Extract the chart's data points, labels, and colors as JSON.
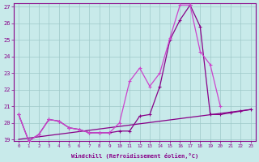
{
  "xlabel": "Windchill (Refroidissement éolien,°C)",
  "background_color": "#c8eaea",
  "grid_color": "#9ec8c8",
  "line_color_dark": "#880088",
  "line_color_light": "#cc44cc",
  "x_data": [
    0,
    1,
    2,
    3,
    4,
    5,
    6,
    7,
    8,
    9,
    10,
    11,
    12,
    13,
    14,
    15,
    16,
    17,
    18,
    19,
    20,
    21,
    22,
    23
  ],
  "y_curve1": [
    20.5,
    18.9,
    19.3,
    20.2,
    20.1,
    19.7,
    19.6,
    19.4,
    19.4,
    19.4,
    19.5,
    19.5,
    20.4,
    20.5,
    22.2,
    25.0,
    26.2,
    27.1,
    25.8,
    20.5,
    20.5,
    20.6,
    20.7,
    20.8
  ],
  "y_curve2": [
    20.5,
    18.9,
    19.3,
    20.2,
    20.1,
    19.7,
    19.6,
    19.4,
    19.4,
    19.4,
    20.0,
    22.5,
    23.3,
    22.2,
    23.0,
    25.1,
    27.1,
    27.1,
    24.3,
    23.5,
    21.0,
    null,
    null,
    null
  ],
  "ylim_min": 19,
  "ylim_max": 27,
  "xlim_min": -0.5,
  "xlim_max": 23.5
}
